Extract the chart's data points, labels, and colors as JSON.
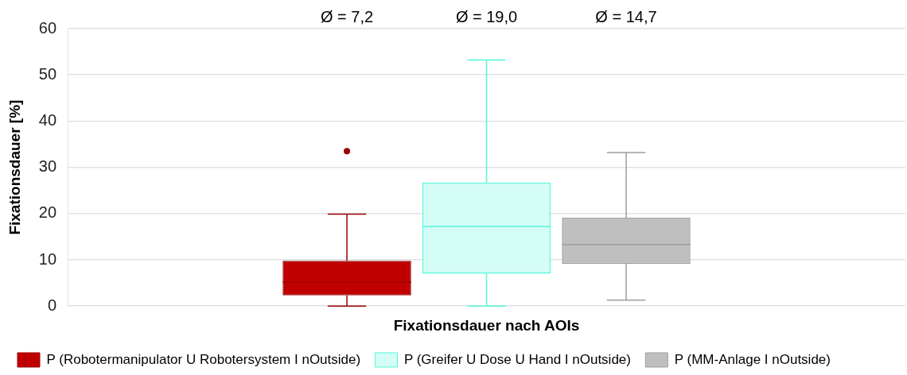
{
  "chart_data": {
    "type": "box",
    "xlabel": "Fixationsdauer nach AOIs",
    "ylabel": "Fixationsdauer [%]",
    "categories": [
      null
    ],
    "series": [
      {
        "name": "P (Robotermanipulator U Robotersystem I nOutside)",
        "color": "#c00000",
        "boxes": [
          {
            "low": 0,
            "q1": 2.3,
            "median": 5.2,
            "q3": 9.8,
            "high": 19.9,
            "outliers": [
              33.5
            ]
          }
        ]
      },
      {
        "name": "P (Greifer U Dose U Hand I nOutside)",
        "color": "#d4fdf6",
        "boxes": [
          {
            "low": 0,
            "q1": 7.0,
            "median": 17.2,
            "q3": 26.7,
            "high": 53.2
          }
        ]
      },
      {
        "name": "P (MM-Anlage I nOutside)",
        "color": "#bfbfbf",
        "boxes": [
          {
            "low": 1.3,
            "q1": 9.1,
            "median": 13.3,
            "q3": 19.1,
            "high": 33.2
          }
        ]
      }
    ],
    "annotations": [
      "Ø = 7,2",
      "Ø = 19,0",
      "Ø = 14,7"
    ],
    "ylim": [
      0,
      60
    ],
    "yticks": [
      0,
      10,
      20,
      30,
      40,
      50,
      60
    ],
    "grid": "y",
    "legend": "bottom",
    "tick_labels": "y"
  }
}
